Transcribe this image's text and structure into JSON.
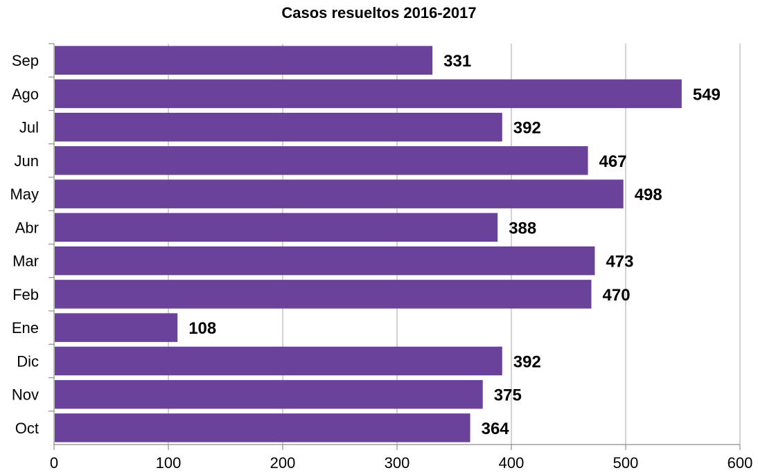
{
  "chart_data": {
    "type": "bar",
    "orientation": "horizontal",
    "title": "Casos resueltos 2016-2017",
    "categories": [
      "Oct",
      "Nov",
      "Dic",
      "Ene",
      "Feb",
      "Mar",
      "Abr",
      "May",
      "Jun",
      "Jul",
      "Ago",
      "Sep"
    ],
    "values": [
      364,
      375,
      392,
      108,
      470,
      473,
      388,
      498,
      467,
      392,
      549,
      331
    ],
    "xlabel": "",
    "ylabel": "",
    "xlim": [
      0,
      600
    ],
    "xticks": [
      "0",
      "100",
      "200",
      "300",
      "400",
      "500",
      "600"
    ],
    "grid": true,
    "legend": "none",
    "data_labels": true,
    "colors": {
      "bar": "#6b4299",
      "grid": "#b3b3b3",
      "axis": "#8c8c8c"
    }
  }
}
